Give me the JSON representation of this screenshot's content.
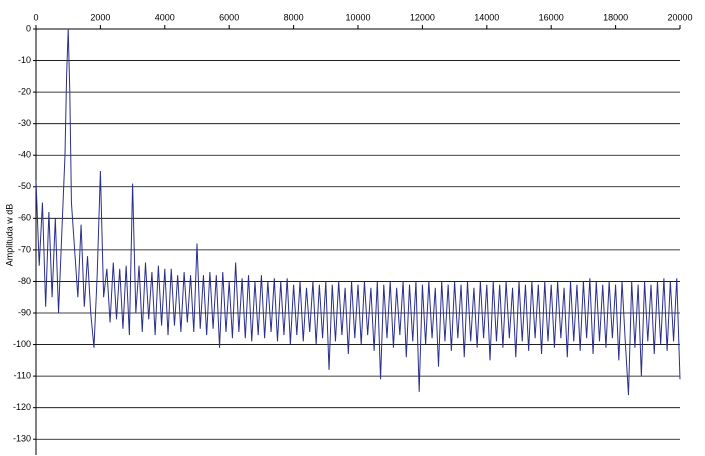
{
  "chart_data": {
    "type": "line",
    "y_label": "Amplituda w dB",
    "xlim": [
      0,
      20000
    ],
    "xticks": [
      0,
      2000,
      4000,
      6000,
      8000,
      10000,
      12000,
      14000,
      16000,
      18000,
      20000
    ],
    "ylim": [
      -135,
      0
    ],
    "yticks": [
      0,
      -10,
      -20,
      -30,
      -40,
      -50,
      -60,
      -70,
      -80,
      -90,
      -100,
      -110,
      -120,
      -130
    ],
    "grid": true,
    "color": "#2b2f8c",
    "x": [
      0,
      100,
      200,
      300,
      400,
      500,
      600,
      700,
      800,
      900,
      950,
      1000,
      1050,
      1100,
      1200,
      1300,
      1400,
      1500,
      1600,
      1700,
      1800,
      1900,
      2000,
      2100,
      2200,
      2300,
      2400,
      2500,
      2600,
      2700,
      2800,
      2900,
      3000,
      3100,
      3200,
      3300,
      3400,
      3500,
      3600,
      3700,
      3800,
      3900,
      4000,
      4100,
      4200,
      4300,
      4400,
      4500,
      4600,
      4700,
      4800,
      4900,
      5000,
      5100,
      5200,
      5300,
      5400,
      5500,
      5600,
      5700,
      5800,
      5900,
      6000,
      6100,
      6200,
      6300,
      6400,
      6500,
      6600,
      6700,
      6800,
      6900,
      7000,
      7100,
      7200,
      7300,
      7400,
      7500,
      7600,
      7700,
      7800,
      7900,
      8000,
      8100,
      8200,
      8300,
      8400,
      8500,
      8600,
      8700,
      8800,
      8900,
      9000,
      9100,
      9200,
      9300,
      9400,
      9500,
      9600,
      9700,
      9800,
      9900,
      10000,
      10100,
      10200,
      10300,
      10400,
      10500,
      10600,
      10700,
      10800,
      10900,
      11000,
      11100,
      11200,
      11300,
      11400,
      11500,
      11600,
      11700,
      11800,
      11900,
      12000,
      12100,
      12200,
      12300,
      12400,
      12500,
      12600,
      12700,
      12800,
      12900,
      13000,
      13100,
      13200,
      13300,
      13400,
      13500,
      13600,
      13700,
      13800,
      13900,
      14000,
      14100,
      14200,
      14300,
      14400,
      14500,
      14600,
      14700,
      14800,
      14900,
      15000,
      15100,
      15200,
      15300,
      15400,
      15500,
      15600,
      15700,
      15800,
      15900,
      16000,
      16100,
      16200,
      16300,
      16400,
      16500,
      16600,
      16700,
      16800,
      16900,
      17000,
      17100,
      17200,
      17300,
      17400,
      17500,
      17600,
      17700,
      17800,
      17900,
      18000,
      18100,
      18200,
      18300,
      18400,
      18500,
      18600,
      18700,
      18800,
      18900,
      19000,
      19100,
      19200,
      19300,
      19400,
      19500,
      19600,
      19700,
      19800,
      19900,
      20000
    ],
    "values": [
      -48,
      -75,
      -55,
      -88,
      -58,
      -85,
      -60,
      -90,
      -65,
      -40,
      -15,
      0,
      -20,
      -55,
      -70,
      -85,
      -62,
      -88,
      -72,
      -90,
      -101,
      -78,
      -45,
      -85,
      -76,
      -93,
      -74,
      -92,
      -76,
      -95,
      -75,
      -97,
      -49,
      -90,
      -75,
      -96,
      -74,
      -92,
      -77,
      -97,
      -75,
      -94,
      -76,
      -97,
      -76,
      -94,
      -78,
      -96,
      -77,
      -93,
      -78,
      -96,
      -68,
      -95,
      -78,
      -97,
      -77,
      -95,
      -78,
      -101,
      -77,
      -96,
      -80,
      -98,
      -74,
      -96,
      -79,
      -98,
      -78,
      -99,
      -80,
      -97,
      -78,
      -98,
      -80,
      -96,
      -79,
      -99,
      -80,
      -97,
      -79,
      -100,
      -81,
      -97,
      -80,
      -99,
      -82,
      -96,
      -80,
      -100,
      -81,
      -98,
      -80,
      -108,
      -81,
      -99,
      -80,
      -97,
      -82,
      -103,
      -80,
      -98,
      -81,
      -100,
      -80,
      -97,
      -82,
      -102,
      -80,
      -111,
      -81,
      -98,
      -80,
      -101,
      -82,
      -97,
      -80,
      -104,
      -81,
      -99,
      -80,
      -115,
      -81,
      -100,
      -80,
      -98,
      -82,
      -107,
      -80,
      -99,
      -81,
      -102,
      -80,
      -98,
      -81,
      -104,
      -80,
      -99,
      -82,
      -101,
      -80,
      -98,
      -81,
      -105,
      -80,
      -99,
      -81,
      -101,
      -80,
      -98,
      -82,
      -104,
      -80,
      -99,
      -81,
      -102,
      -80,
      -98,
      -81,
      -103,
      -80,
      -99,
      -81,
      -101,
      -80,
      -98,
      -82,
      -104,
      -80,
      -99,
      -81,
      -102,
      -80,
      -98,
      -79,
      -103,
      -80,
      -99,
      -81,
      -101,
      -80,
      -98,
      -81,
      -105,
      -80,
      -99,
      -116,
      -80,
      -101,
      -81,
      -110,
      -80,
      -99,
      -81,
      -103,
      -80,
      -100,
      -79,
      -102,
      -80,
      -99,
      -79,
      -111
    ]
  }
}
